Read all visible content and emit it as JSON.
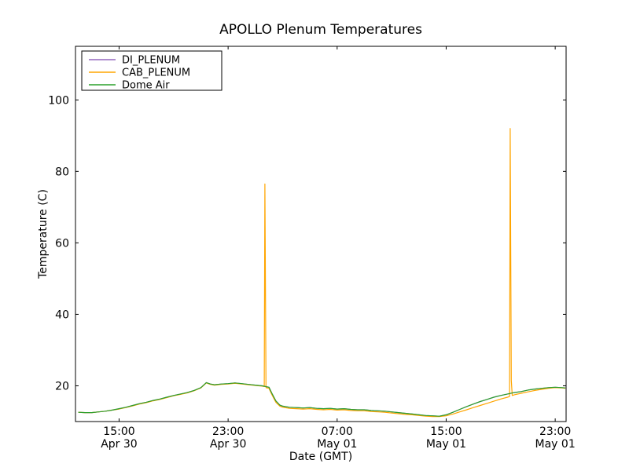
{
  "figure": {
    "background": "#ffffff"
  },
  "chart_data": {
    "type": "line",
    "title": "APOLLO Plenum Temperatures",
    "xlabel": "Date (GMT)",
    "ylabel": "Temperature (C)",
    "x_unit": "hours since Apr 30 00:00 GMT",
    "xlim": [
      11.8,
      47.8
    ],
    "ylim": [
      10,
      115
    ],
    "grid": false,
    "axes_color": "#000000",
    "y_ticks": [
      20,
      40,
      60,
      80,
      100
    ],
    "x_ticks": [
      {
        "x": 15,
        "time": "15:00",
        "date": "Apr 30"
      },
      {
        "x": 23,
        "time": "23:00",
        "date": "Apr 30"
      },
      {
        "x": 31,
        "time": "07:00",
        "date": "May 01"
      },
      {
        "x": 39,
        "time": "15:00",
        "date": "May 01"
      },
      {
        "x": 47,
        "time": "23:00",
        "date": "May 01"
      }
    ],
    "legend": {
      "position": "upper-left",
      "border": true
    },
    "series": [
      {
        "name": "DI_PLENUM",
        "color": "#9467bd",
        "points": [
          [
            12,
            12.6
          ],
          [
            12.5,
            12.5
          ],
          [
            13,
            12.5
          ],
          [
            13.5,
            12.7
          ],
          [
            14,
            12.9
          ],
          [
            14.5,
            13.2
          ],
          [
            15,
            13.6
          ],
          [
            15.5,
            14.0
          ],
          [
            16,
            14.5
          ],
          [
            16.5,
            15.0
          ],
          [
            17,
            15.4
          ],
          [
            17.5,
            15.9
          ],
          [
            18,
            16.3
          ],
          [
            18.5,
            16.8
          ],
          [
            19,
            17.3
          ],
          [
            19.5,
            17.7
          ],
          [
            20,
            18.1
          ],
          [
            20.5,
            18.7
          ],
          [
            21,
            19.5
          ],
          [
            21.4,
            20.9
          ],
          [
            21.7,
            20.5
          ],
          [
            22,
            20.3
          ],
          [
            22.5,
            20.5
          ],
          [
            23,
            20.6
          ],
          [
            23.5,
            20.8
          ],
          [
            24,
            20.6
          ],
          [
            24.5,
            20.4
          ],
          [
            25,
            20.2
          ],
          [
            25.5,
            20.0
          ],
          [
            26,
            19.6
          ],
          [
            26.2,
            18.0
          ],
          [
            26.5,
            15.8
          ],
          [
            26.8,
            14.6
          ],
          [
            27,
            14.3
          ],
          [
            27.5,
            14.0
          ],
          [
            28,
            13.9
          ],
          [
            28.5,
            13.8
          ],
          [
            29,
            13.9
          ],
          [
            29.5,
            13.7
          ],
          [
            30,
            13.6
          ],
          [
            30.5,
            13.7
          ],
          [
            31,
            13.5
          ],
          [
            31.5,
            13.6
          ],
          [
            32,
            13.4
          ],
          [
            32.5,
            13.3
          ],
          [
            33,
            13.3
          ],
          [
            33.5,
            13.1
          ],
          [
            34,
            13.0
          ],
          [
            34.5,
            12.9
          ],
          [
            35,
            12.7
          ],
          [
            35.5,
            12.5
          ],
          [
            36,
            12.3
          ],
          [
            36.5,
            12.1
          ],
          [
            37,
            11.9
          ],
          [
            37.5,
            11.7
          ],
          [
            38,
            11.6
          ],
          [
            38.5,
            11.5
          ],
          [
            39,
            11.9
          ],
          [
            39.5,
            12.6
          ],
          [
            40,
            13.4
          ],
          [
            40.5,
            14.2
          ],
          [
            41,
            14.9
          ],
          [
            41.5,
            15.6
          ],
          [
            42,
            16.2
          ],
          [
            42.5,
            16.8
          ],
          [
            43,
            17.3
          ],
          [
            43.5,
            17.7
          ],
          [
            44,
            18.1
          ],
          [
            44.5,
            18.4
          ],
          [
            45,
            18.8
          ],
          [
            45.5,
            19.1
          ],
          [
            46,
            19.3
          ],
          [
            46.5,
            19.5
          ],
          [
            47,
            19.6
          ],
          [
            47.5,
            19.5
          ],
          [
            47.75,
            19.4
          ]
        ]
      },
      {
        "name": "CAB_PLENUM",
        "color": "#ffa500",
        "points": [
          [
            12,
            12.6
          ],
          [
            12.5,
            12.5
          ],
          [
            13,
            12.5
          ],
          [
            13.5,
            12.7
          ],
          [
            14,
            12.9
          ],
          [
            14.5,
            13.2
          ],
          [
            15,
            13.5
          ],
          [
            15.5,
            13.9
          ],
          [
            16,
            14.4
          ],
          [
            16.5,
            14.9
          ],
          [
            17,
            15.3
          ],
          [
            17.5,
            15.8
          ],
          [
            18,
            16.2
          ],
          [
            18.5,
            16.7
          ],
          [
            19,
            17.2
          ],
          [
            19.5,
            17.6
          ],
          [
            20,
            18.0
          ],
          [
            20.5,
            18.6
          ],
          [
            21,
            19.4
          ],
          [
            21.4,
            20.8
          ],
          [
            21.7,
            20.4
          ],
          [
            22,
            20.2
          ],
          [
            22.5,
            20.4
          ],
          [
            23,
            20.5
          ],
          [
            23.5,
            20.7
          ],
          [
            24,
            20.5
          ],
          [
            24.5,
            20.3
          ],
          [
            25,
            20.1
          ],
          [
            25.5,
            19.9
          ],
          [
            25.65,
            19.8
          ],
          [
            25.7,
            76.5
          ],
          [
            25.78,
            19.5
          ],
          [
            26,
            19.3
          ],
          [
            26.2,
            17.6
          ],
          [
            26.5,
            15.4
          ],
          [
            26.8,
            14.3
          ],
          [
            27,
            14.0
          ],
          [
            27.5,
            13.7
          ],
          [
            28,
            13.6
          ],
          [
            28.5,
            13.5
          ],
          [
            29,
            13.6
          ],
          [
            29.5,
            13.4
          ],
          [
            30,
            13.3
          ],
          [
            30.5,
            13.4
          ],
          [
            31,
            13.2
          ],
          [
            31.5,
            13.3
          ],
          [
            32,
            13.1
          ],
          [
            32.5,
            13.0
          ],
          [
            33,
            13.0
          ],
          [
            33.5,
            12.8
          ],
          [
            34,
            12.7
          ],
          [
            34.5,
            12.6
          ],
          [
            35,
            12.4
          ],
          [
            35.5,
            12.2
          ],
          [
            36,
            12.0
          ],
          [
            36.5,
            11.9
          ],
          [
            37,
            11.7
          ],
          [
            37.5,
            11.5
          ],
          [
            38,
            11.4
          ],
          [
            38.5,
            11.4
          ],
          [
            39,
            11.6
          ],
          [
            39.5,
            12.1
          ],
          [
            40,
            12.7
          ],
          [
            40.5,
            13.3
          ],
          [
            41,
            13.9
          ],
          [
            41.5,
            14.5
          ],
          [
            42,
            15.1
          ],
          [
            42.5,
            15.7
          ],
          [
            43,
            16.3
          ],
          [
            43.5,
            16.8
          ],
          [
            43.65,
            17.0
          ],
          [
            43.7,
            92.0
          ],
          [
            43.78,
            21.5
          ],
          [
            43.85,
            17.3
          ],
          [
            44,
            17.5
          ],
          [
            44.5,
            17.9
          ],
          [
            45,
            18.3
          ],
          [
            45.5,
            18.7
          ],
          [
            46,
            19.0
          ],
          [
            46.5,
            19.3
          ],
          [
            47,
            19.5
          ],
          [
            47.5,
            19.4
          ],
          [
            47.75,
            19.3
          ]
        ]
      },
      {
        "name": "Dome Air",
        "color": "#2ca02c",
        "points": [
          [
            12,
            12.6
          ],
          [
            12.5,
            12.5
          ],
          [
            13,
            12.5
          ],
          [
            13.5,
            12.7
          ],
          [
            14,
            12.9
          ],
          [
            14.5,
            13.2
          ],
          [
            15,
            13.6
          ],
          [
            15.5,
            14.0
          ],
          [
            16,
            14.5
          ],
          [
            16.5,
            15.0
          ],
          [
            17,
            15.4
          ],
          [
            17.5,
            15.9
          ],
          [
            18,
            16.3
          ],
          [
            18.5,
            16.8
          ],
          [
            19,
            17.3
          ],
          [
            19.5,
            17.7
          ],
          [
            20,
            18.1
          ],
          [
            20.5,
            18.7
          ],
          [
            21,
            19.5
          ],
          [
            21.4,
            20.9
          ],
          [
            21.7,
            20.5
          ],
          [
            22,
            20.3
          ],
          [
            22.5,
            20.5
          ],
          [
            23,
            20.6
          ],
          [
            23.5,
            20.8
          ],
          [
            24,
            20.6
          ],
          [
            24.5,
            20.4
          ],
          [
            25,
            20.2
          ],
          [
            25.5,
            20.0
          ],
          [
            26,
            19.6
          ],
          [
            26.2,
            18.0
          ],
          [
            26.5,
            15.8
          ],
          [
            26.8,
            14.6
          ],
          [
            27,
            14.3
          ],
          [
            27.5,
            14.0
          ],
          [
            28,
            13.9
          ],
          [
            28.5,
            13.8
          ],
          [
            29,
            13.9
          ],
          [
            29.5,
            13.7
          ],
          [
            30,
            13.6
          ],
          [
            30.5,
            13.7
          ],
          [
            31,
            13.5
          ],
          [
            31.5,
            13.6
          ],
          [
            32,
            13.4
          ],
          [
            32.5,
            13.3
          ],
          [
            33,
            13.3
          ],
          [
            33.5,
            13.1
          ],
          [
            34,
            13.0
          ],
          [
            34.5,
            12.9
          ],
          [
            35,
            12.7
          ],
          [
            35.5,
            12.5
          ],
          [
            36,
            12.3
          ],
          [
            36.5,
            12.1
          ],
          [
            37,
            11.9
          ],
          [
            37.5,
            11.7
          ],
          [
            38,
            11.6
          ],
          [
            38.5,
            11.5
          ],
          [
            39,
            11.9
          ],
          [
            39.5,
            12.6
          ],
          [
            40,
            13.4
          ],
          [
            40.5,
            14.2
          ],
          [
            41,
            14.9
          ],
          [
            41.5,
            15.6
          ],
          [
            42,
            16.2
          ],
          [
            42.5,
            16.8
          ],
          [
            43,
            17.3
          ],
          [
            43.5,
            17.7
          ],
          [
            44,
            18.1
          ],
          [
            44.5,
            18.4
          ],
          [
            45,
            18.8
          ],
          [
            45.5,
            19.1
          ],
          [
            46,
            19.3
          ],
          [
            46.5,
            19.5
          ],
          [
            47,
            19.6
          ],
          [
            47.5,
            19.5
          ],
          [
            47.75,
            19.4
          ]
        ]
      }
    ]
  }
}
